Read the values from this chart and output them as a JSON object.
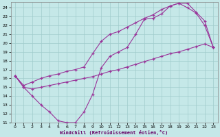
{
  "xlabel": "Windchill (Refroidissement éolien,°C)",
  "bg_color": "#c5e8e8",
  "grid_color": "#a0cccc",
  "line_color": "#993399",
  "xlim": [
    -0.5,
    23.5
  ],
  "ylim": [
    11,
    24.6
  ],
  "xticks": [
    0,
    1,
    2,
    3,
    4,
    5,
    6,
    7,
    8,
    9,
    10,
    11,
    12,
    13,
    14,
    15,
    16,
    17,
    18,
    19,
    20,
    21,
    22,
    23
  ],
  "yticks": [
    11,
    12,
    13,
    14,
    15,
    16,
    17,
    18,
    19,
    20,
    21,
    22,
    23,
    24
  ],
  "c1x": [
    0,
    1,
    2,
    3,
    4,
    5,
    6,
    7,
    8,
    9,
    10,
    11,
    12,
    13,
    14,
    15,
    16,
    17,
    18,
    19,
    20,
    21,
    22,
    23
  ],
  "c1y": [
    16.3,
    15.0,
    14.0,
    13.0,
    12.2,
    11.2,
    11.0,
    11.0,
    12.2,
    14.2,
    17.2,
    18.5,
    19.0,
    19.5,
    21.0,
    22.7,
    22.8,
    23.3,
    24.2,
    24.5,
    24.5,
    23.5,
    22.5,
    19.5
  ],
  "c2x": [
    0,
    1,
    2,
    3,
    4,
    5,
    6,
    7,
    8,
    9,
    10,
    11,
    12,
    13,
    14,
    15,
    16,
    17,
    18,
    19,
    20,
    21,
    22,
    23
  ],
  "c2y": [
    16.3,
    15.2,
    15.6,
    16.0,
    16.3,
    16.5,
    16.8,
    17.0,
    17.3,
    18.8,
    20.2,
    21.0,
    21.3,
    21.8,
    22.3,
    22.8,
    23.2,
    23.8,
    24.2,
    24.5,
    24.0,
    23.4,
    22.0,
    19.5
  ],
  "c3x": [
    0,
    1,
    2,
    3,
    4,
    5,
    6,
    7,
    8,
    9,
    10,
    11,
    12,
    13,
    14,
    15,
    16,
    17,
    18,
    19,
    20,
    21,
    22,
    23
  ],
  "c3y": [
    16.3,
    15.0,
    14.8,
    15.0,
    15.2,
    15.4,
    15.6,
    15.8,
    16.0,
    16.2,
    16.5,
    16.8,
    17.0,
    17.3,
    17.6,
    17.9,
    18.2,
    18.5,
    18.8,
    19.0,
    19.3,
    19.6,
    19.9,
    19.5
  ]
}
